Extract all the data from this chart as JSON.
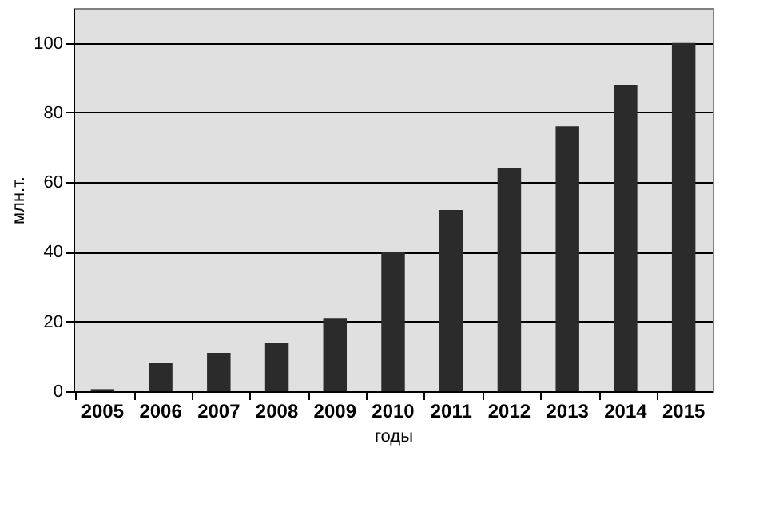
{
  "chart_data": {
    "type": "bar",
    "xlabel": "годы",
    "ylabel": "млн.т.",
    "categories": [
      "2005",
      "2006",
      "2007",
      "2008",
      "2009",
      "2010",
      "2011",
      "2012",
      "2013",
      "2014",
      "2015"
    ],
    "values": [
      0.6,
      8,
      11,
      14,
      21,
      40,
      52,
      64,
      76,
      88,
      100
    ],
    "color": "#2b2b2b",
    "ylim": [
      0,
      110
    ],
    "yticks": [
      0,
      20,
      40,
      60,
      80,
      100
    ],
    "grid": "y"
  }
}
